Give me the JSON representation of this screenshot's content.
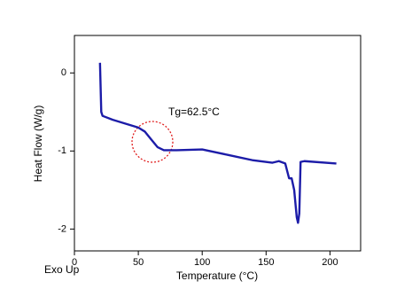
{
  "chart_data": {
    "type": "line",
    "x_label": "Temperature (°C)",
    "y_label": "Heat Flow (W/g)",
    "annotations": [
      "Tg=62.5°C",
      "Exo Up"
    ],
    "x": [
      20,
      21,
      22,
      30,
      40,
      50,
      55,
      60,
      65,
      70,
      80,
      100,
      120,
      140,
      155,
      160,
      165,
      168,
      170,
      172,
      174,
      175,
      176,
      177,
      180,
      205
    ],
    "series": [
      {
        "name": "Heat Flow",
        "color": "#1c1ca8",
        "values": [
          0.13,
          -0.5,
          -0.55,
          -0.6,
          -0.65,
          -0.7,
          -0.75,
          -0.85,
          -0.95,
          -0.99,
          -0.99,
          -0.98,
          -1.05,
          -1.12,
          -1.15,
          -1.13,
          -1.16,
          -1.35,
          -1.35,
          -1.5,
          -1.85,
          -1.92,
          -1.8,
          -1.14,
          -1.13,
          -1.16
        ]
      }
    ],
    "xlim": [
      0,
      224
    ],
    "ylim": [
      -2.28,
      0.48
    ],
    "xticks": [
      0,
      50,
      100,
      150,
      200
    ],
    "yticks": [
      0,
      -1,
      -2
    ]
  }
}
